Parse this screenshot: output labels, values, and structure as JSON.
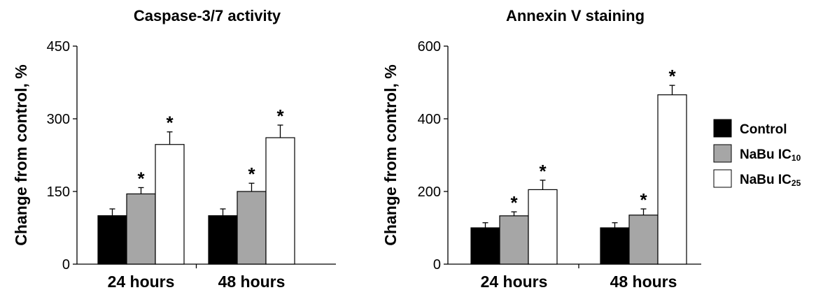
{
  "series_names": {
    "control": "Control",
    "ic10_main": "NaBu IC",
    "ic10_sub": "10",
    "ic25_main": "NaBu IC",
    "ic25_sub": "25"
  },
  "chart_data": [
    {
      "type": "bar",
      "title": "Caspase-3/7 activity",
      "ylabel": "Change from control, %",
      "xlabel": "",
      "ylim": [
        0,
        450
      ],
      "yticks": [
        0,
        150,
        300,
        450
      ],
      "categories": [
        "24 hours",
        "48 hours"
      ],
      "series": [
        {
          "name": "Control",
          "color": "#000000",
          "values": [
            100,
            100
          ],
          "errors": [
            14,
            14
          ],
          "significant": [
            false,
            false
          ]
        },
        {
          "name": "NaBu IC10",
          "color": "#a6a6a6",
          "values": [
            145,
            150
          ],
          "errors": [
            13,
            17
          ],
          "significant": [
            true,
            true
          ]
        },
        {
          "name": "NaBu IC25",
          "color": "#ffffff",
          "values": [
            247,
            261
          ],
          "errors": [
            26,
            26
          ],
          "significant": [
            true,
            true
          ]
        }
      ],
      "significance_marker": "*"
    },
    {
      "type": "bar",
      "title": "Annexin V staining",
      "ylabel": "Change from control, %",
      "xlabel": "",
      "ylim": [
        0,
        600
      ],
      "yticks": [
        0,
        200,
        400,
        600
      ],
      "categories": [
        "24 hours",
        "48 hours"
      ],
      "series": [
        {
          "name": "Control",
          "color": "#000000",
          "values": [
            100,
            100
          ],
          "errors": [
            14,
            14
          ],
          "significant": [
            false,
            false
          ]
        },
        {
          "name": "NaBu IC10",
          "color": "#a6a6a6",
          "values": [
            133,
            135
          ],
          "errors": [
            11,
            17
          ],
          "significant": [
            true,
            true
          ]
        },
        {
          "name": "NaBu IC25",
          "color": "#ffffff",
          "values": [
            205,
            466
          ],
          "errors": [
            26,
            26
          ],
          "significant": [
            true,
            true
          ]
        }
      ],
      "significance_marker": "*"
    }
  ]
}
